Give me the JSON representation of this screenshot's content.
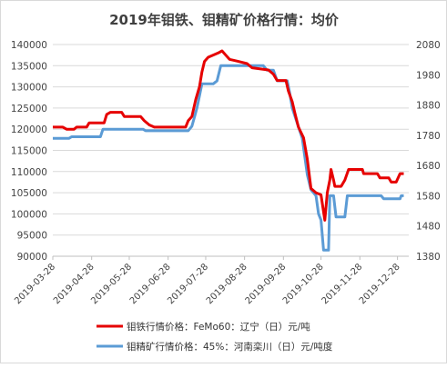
{
  "chart_data": {
    "type": "line",
    "title": "2019年钼铁、钼精矿价格行情：均价",
    "x_ticks": [
      "2019-03-28",
      "2019-04-28",
      "2019-05-28",
      "2019-06-28",
      "2019-07-28",
      "2019-08-28",
      "2019-09-28",
      "2019-10-28",
      "2019-11-28",
      "2019-12-28"
    ],
    "x_range": [
      "2019-03-28",
      "2020-01-06"
    ],
    "y_left": {
      "min": 90000,
      "max": 140000,
      "ticks": [
        "90000",
        "95000",
        "100000",
        "105000",
        "110000",
        "115000",
        "120000",
        "125000",
        "130000",
        "135000",
        "140000"
      ]
    },
    "y_right": {
      "min": 1380,
      "max": 2080,
      "ticks": [
        "1380",
        "1480",
        "1580",
        "1680",
        "1780",
        "1880",
        "1980",
        "2080"
      ]
    },
    "grid": true,
    "legend_position": "bottom",
    "series": [
      {
        "name": "钼铁行情价格：FeMo60：辽宁（日）元/吨",
        "axis": "left",
        "color": "#e60000",
        "points": [
          [
            "2019-03-28",
            120500
          ],
          [
            "2019-04-05",
            120500
          ],
          [
            "2019-04-08",
            120000
          ],
          [
            "2019-04-14",
            120000
          ],
          [
            "2019-04-16",
            120500
          ],
          [
            "2019-04-24",
            120500
          ],
          [
            "2019-04-26",
            121500
          ],
          [
            "2019-05-08",
            121500
          ],
          [
            "2019-05-10",
            123500
          ],
          [
            "2019-05-13",
            124000
          ],
          [
            "2019-05-22",
            124000
          ],
          [
            "2019-05-24",
            123000
          ],
          [
            "2019-06-06",
            123000
          ],
          [
            "2019-06-09",
            122000
          ],
          [
            "2019-06-13",
            121000
          ],
          [
            "2019-06-17",
            120500
          ],
          [
            "2019-07-12",
            120500
          ],
          [
            "2019-07-14",
            122000
          ],
          [
            "2019-07-17",
            123000
          ],
          [
            "2019-07-20",
            127000
          ],
          [
            "2019-07-23",
            130000
          ],
          [
            "2019-07-25",
            133500
          ],
          [
            "2019-07-27",
            136000
          ],
          [
            "2019-07-30",
            137000
          ],
          [
            "2019-08-07",
            138000
          ],
          [
            "2019-08-10",
            138500
          ],
          [
            "2019-08-13",
            137500
          ],
          [
            "2019-08-16",
            136500
          ],
          [
            "2019-08-23",
            136000
          ],
          [
            "2019-08-30",
            135500
          ],
          [
            "2019-09-03",
            134500
          ],
          [
            "2019-09-16",
            134000
          ],
          [
            "2019-09-20",
            133000
          ],
          [
            "2019-09-23",
            131500
          ],
          [
            "2019-09-30",
            131500
          ],
          [
            "2019-10-02",
            129000
          ],
          [
            "2019-10-05",
            126500
          ],
          [
            "2019-10-07",
            124000
          ],
          [
            "2019-10-10",
            120500
          ],
          [
            "2019-10-14",
            118000
          ],
          [
            "2019-10-17",
            113000
          ],
          [
            "2019-10-20",
            106000
          ],
          [
            "2019-10-24",
            105000
          ],
          [
            "2019-10-28",
            104500
          ],
          [
            "2019-10-31",
            98500
          ],
          [
            "2019-11-02",
            105000
          ],
          [
            "2019-11-04",
            108000
          ],
          [
            "2019-11-05",
            110500
          ],
          [
            "2019-11-07",
            108000
          ],
          [
            "2019-11-08",
            106500
          ],
          [
            "2019-11-13",
            106500
          ],
          [
            "2019-11-16",
            108000
          ],
          [
            "2019-11-19",
            110500
          ],
          [
            "2019-11-30",
            110500
          ],
          [
            "2019-12-01",
            109500
          ],
          [
            "2019-12-12",
            109500
          ],
          [
            "2019-12-14",
            108500
          ],
          [
            "2019-12-21",
            108500
          ],
          [
            "2019-12-23",
            107500
          ],
          [
            "2019-12-27",
            107500
          ],
          [
            "2019-12-30",
            109500
          ],
          [
            "2020-01-02",
            109500
          ]
        ]
      },
      {
        "name": "钼精矿行情价格：45%：河南栾川（日）元/吨度",
        "axis": "right",
        "color": "#5b9bd5",
        "points": [
          [
            "2019-03-28",
            1770
          ],
          [
            "2019-04-10",
            1770
          ],
          [
            "2019-04-12",
            1775
          ],
          [
            "2019-05-05",
            1775
          ],
          [
            "2019-05-07",
            1800
          ],
          [
            "2019-06-08",
            1800
          ],
          [
            "2019-06-10",
            1795
          ],
          [
            "2019-07-14",
            1795
          ],
          [
            "2019-07-17",
            1810
          ],
          [
            "2019-07-19",
            1840
          ],
          [
            "2019-07-21",
            1870
          ],
          [
            "2019-07-23",
            1910
          ],
          [
            "2019-07-25",
            1950
          ],
          [
            "2019-08-03",
            1950
          ],
          [
            "2019-08-06",
            1960
          ],
          [
            "2019-08-09",
            2010
          ],
          [
            "2019-09-12",
            2010
          ],
          [
            "2019-09-15",
            1995
          ],
          [
            "2019-09-20",
            1995
          ],
          [
            "2019-09-23",
            1960
          ],
          [
            "2019-10-01",
            1960
          ],
          [
            "2019-10-03",
            1920
          ],
          [
            "2019-10-05",
            1870
          ],
          [
            "2019-10-09",
            1820
          ],
          [
            "2019-10-13",
            1770
          ],
          [
            "2019-10-17",
            1650
          ],
          [
            "2019-10-20",
            1600
          ],
          [
            "2019-10-24",
            1580
          ],
          [
            "2019-10-26",
            1520
          ],
          [
            "2019-10-28",
            1500
          ],
          [
            "2019-10-30",
            1400
          ],
          [
            "2019-11-03",
            1400
          ],
          [
            "2019-11-04",
            1580
          ],
          [
            "2019-11-07",
            1580
          ],
          [
            "2019-11-09",
            1510
          ],
          [
            "2019-11-16",
            1510
          ],
          [
            "2019-11-18",
            1580
          ],
          [
            "2019-12-15",
            1580
          ],
          [
            "2019-12-17",
            1570
          ],
          [
            "2019-12-30",
            1570
          ],
          [
            "2019-12-31",
            1580
          ],
          [
            "2020-01-02",
            1580
          ]
        ]
      }
    ]
  }
}
